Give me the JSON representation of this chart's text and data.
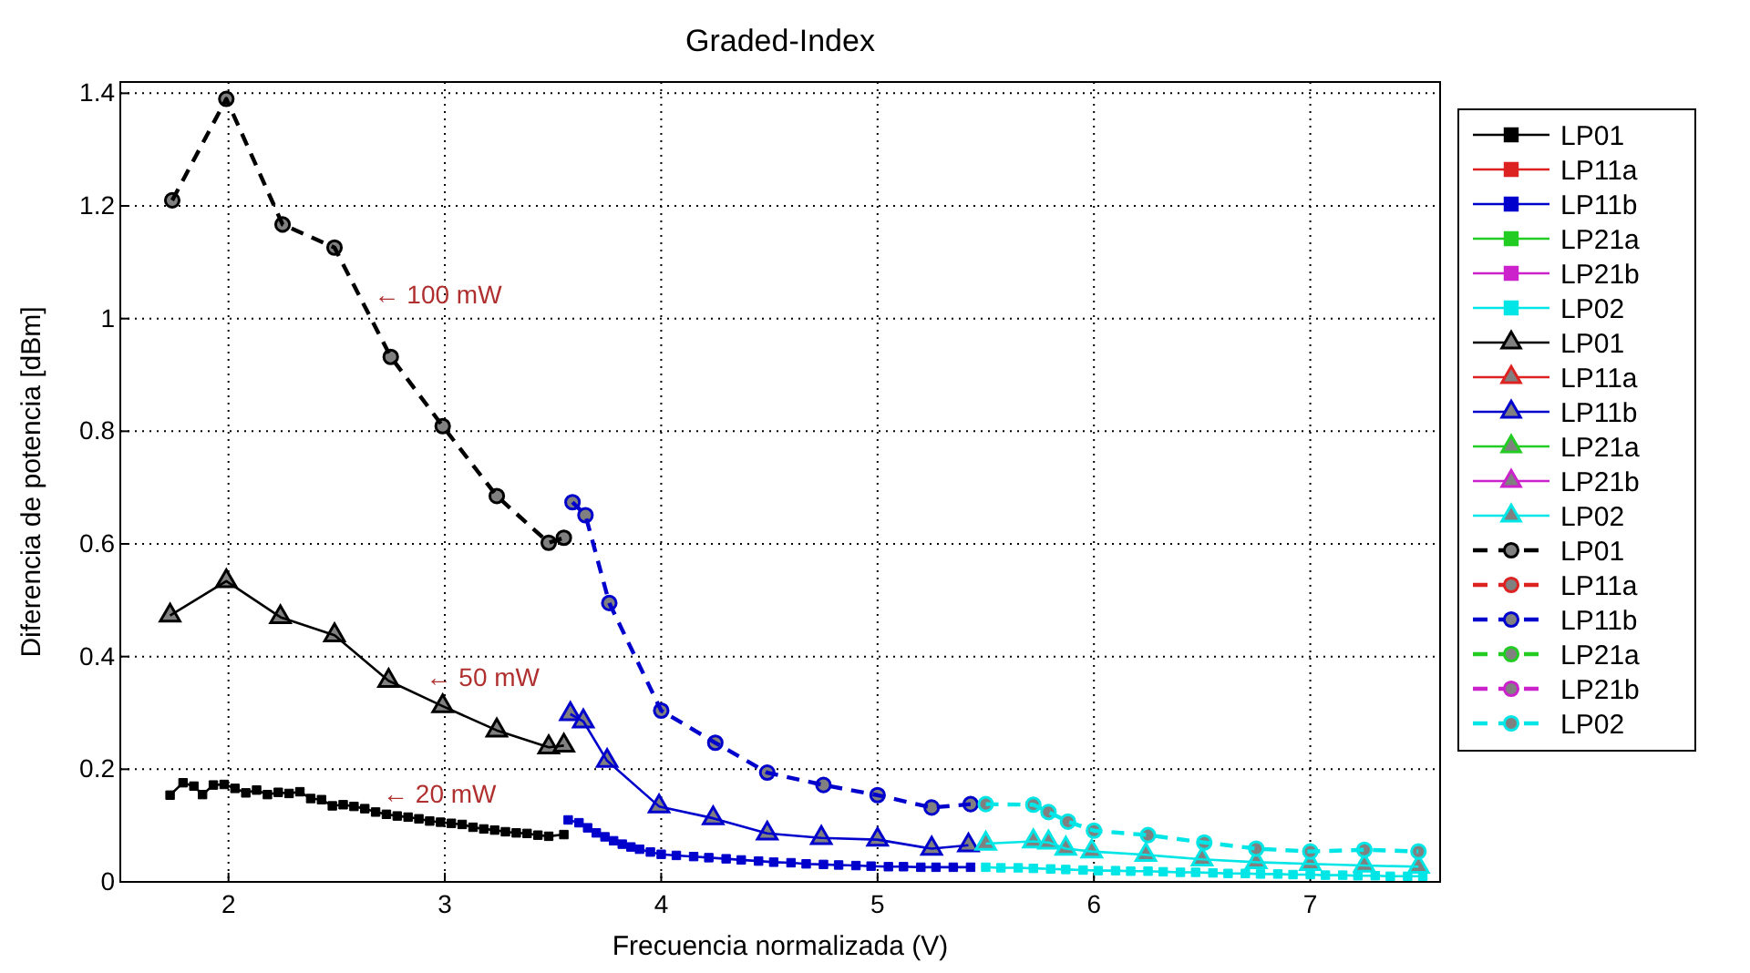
{
  "chart_data": {
    "type": "line",
    "title": "Graded-Index",
    "xlabel": "Frecuencia normalizada (V)",
    "ylabel": "Diferencia de potencia [dBm]",
    "xlim": [
      1.5,
      7.6
    ],
    "ylim": [
      0,
      1.42
    ],
    "xticks": [
      2,
      3,
      4,
      5,
      6,
      7
    ],
    "yticks": [
      0,
      0.2,
      0.4,
      0.6,
      0.8,
      1,
      1.2,
      1.4
    ],
    "grid": true,
    "legend": "right",
    "series": [
      {
        "name": "LP01",
        "color": "#000000",
        "marker": "square",
        "line_style": "solid",
        "x": [
          1.73,
          1.79,
          1.84,
          1.88,
          1.93,
          1.98,
          2.03,
          2.08,
          2.13,
          2.18,
          2.23,
          2.28,
          2.33,
          2.38,
          2.43,
          2.48,
          2.53,
          2.58,
          2.63,
          2.68,
          2.73,
          2.78,
          2.83,
          2.88,
          2.93,
          2.98,
          3.03,
          3.08,
          3.13,
          3.18,
          3.23,
          3.28,
          3.33,
          3.38,
          3.43,
          3.48,
          3.55
        ],
        "values": [
          0.154,
          0.176,
          0.17,
          0.155,
          0.172,
          0.173,
          0.166,
          0.158,
          0.163,
          0.155,
          0.159,
          0.157,
          0.16,
          0.148,
          0.146,
          0.135,
          0.137,
          0.134,
          0.13,
          0.124,
          0.12,
          0.117,
          0.115,
          0.112,
          0.108,
          0.106,
          0.104,
          0.102,
          0.097,
          0.094,
          0.092,
          0.089,
          0.087,
          0.086,
          0.083,
          0.081,
          0.084
        ]
      },
      {
        "name": "LP11a",
        "color": "#dd2222",
        "marker": "square",
        "line_style": "solid",
        "values": [
          null
        ]
      },
      {
        "name": "LP11b",
        "color": "#0000cc",
        "marker": "square",
        "line_style": "solid",
        "x": [
          3.57,
          3.62,
          3.66,
          3.7,
          3.74,
          3.78,
          3.82,
          3.86,
          3.9,
          3.95,
          4.0,
          4.07,
          4.15,
          4.22,
          4.3,
          4.37,
          4.45,
          4.52,
          4.6,
          4.67,
          4.75,
          4.82,
          4.9,
          4.97,
          5.05,
          5.12,
          5.2,
          5.27,
          5.35,
          5.43
        ],
        "values": [
          0.11,
          0.105,
          0.096,
          0.087,
          0.08,
          0.073,
          0.067,
          0.062,
          0.058,
          0.053,
          0.049,
          0.047,
          0.045,
          0.043,
          0.041,
          0.039,
          0.037,
          0.035,
          0.034,
          0.032,
          0.031,
          0.03,
          0.029,
          0.028,
          0.027,
          0.027,
          0.026,
          0.026,
          0.026,
          0.026
        ]
      },
      {
        "name": "LP21a",
        "color": "#22cc22",
        "marker": "square",
        "line_style": "solid",
        "values": [
          null
        ]
      },
      {
        "name": "LP21b",
        "color": "#cc22cc",
        "marker": "square",
        "line_style": "solid",
        "values": [
          null
        ]
      },
      {
        "name": "LP02",
        "color": "#00e5e5",
        "marker": "square",
        "line_style": "solid",
        "x": [
          5.5,
          5.57,
          5.65,
          5.72,
          5.8,
          5.87,
          5.95,
          6.02,
          6.1,
          6.17,
          6.25,
          6.32,
          6.4,
          6.47,
          6.55,
          6.62,
          6.7,
          6.77,
          6.85,
          6.92,
          7.0,
          7.07,
          7.15,
          7.22,
          7.3,
          7.37,
          7.45,
          7.52
        ],
        "values": [
          0.026,
          0.025,
          0.025,
          0.024,
          0.023,
          0.022,
          0.021,
          0.02,
          0.02,
          0.019,
          0.019,
          0.018,
          0.017,
          0.017,
          0.016,
          0.015,
          0.015,
          0.014,
          0.014,
          0.013,
          0.013,
          0.012,
          0.012,
          0.011,
          0.011,
          0.01,
          0.01,
          0.01
        ]
      },
      {
        "name": "LP01",
        "color": "#000000",
        "marker": "triangle",
        "line_style": "solid",
        "x": [
          1.73,
          1.99,
          2.24,
          2.49,
          2.74,
          2.99,
          3.24,
          3.48,
          3.55
        ],
        "values": [
          0.473,
          0.534,
          0.47,
          0.438,
          0.357,
          0.312,
          0.269,
          0.239,
          0.242
        ]
      },
      {
        "name": "LP11a",
        "color": "#dd2222",
        "marker": "triangle",
        "line_style": "solid",
        "values": [
          null
        ]
      },
      {
        "name": "LP11b",
        "color": "#0000cc",
        "marker": "triangle",
        "line_style": "solid",
        "x": [
          3.58,
          3.64,
          3.75,
          3.99,
          4.24,
          4.49,
          4.74,
          5.0,
          5.25,
          5.42
        ],
        "values": [
          0.298,
          0.285,
          0.215,
          0.134,
          0.113,
          0.086,
          0.078,
          0.075,
          0.059,
          0.065
        ]
      },
      {
        "name": "LP21a",
        "color": "#22cc22",
        "marker": "triangle",
        "line_style": "solid",
        "values": [
          null
        ]
      },
      {
        "name": "LP21b",
        "color": "#cc22cc",
        "marker": "triangle",
        "line_style": "solid",
        "values": [
          null
        ]
      },
      {
        "name": "LP02",
        "color": "#00e5e5",
        "marker": "triangle",
        "line_style": "solid",
        "x": [
          5.5,
          5.72,
          5.79,
          5.87,
          5.99,
          6.24,
          6.5,
          6.75,
          7.0,
          7.25,
          7.5
        ],
        "values": [
          0.068,
          0.072,
          0.07,
          0.059,
          0.054,
          0.048,
          0.04,
          0.035,
          0.032,
          0.029,
          0.027
        ]
      },
      {
        "name": "LP01",
        "color": "#000000",
        "marker": "circle",
        "line_style": "dashed",
        "x": [
          1.74,
          1.99,
          2.25,
          2.49,
          2.75,
          2.99,
          3.24,
          3.48,
          3.55
        ],
        "values": [
          1.21,
          1.39,
          1.167,
          1.126,
          0.932,
          0.809,
          0.685,
          0.602,
          0.611
        ]
      },
      {
        "name": "LP11a",
        "color": "#dd2222",
        "marker": "circle",
        "line_style": "dashed",
        "values": [
          null
        ]
      },
      {
        "name": "LP11b",
        "color": "#0000cc",
        "marker": "circle",
        "line_style": "dashed",
        "x": [
          3.59,
          3.65,
          3.76,
          4.0,
          4.25,
          4.49,
          4.75,
          5.0,
          5.25,
          5.43
        ],
        "values": [
          0.674,
          0.651,
          0.495,
          0.304,
          0.247,
          0.194,
          0.172,
          0.154,
          0.132,
          0.138
        ]
      },
      {
        "name": "LP21a",
        "color": "#22cc22",
        "marker": "circle",
        "line_style": "dashed",
        "values": [
          null
        ]
      },
      {
        "name": "LP21b",
        "color": "#cc22cc",
        "marker": "circle",
        "line_style": "dashed",
        "values": [
          null
        ]
      },
      {
        "name": "LP02",
        "color": "#00e5e5",
        "marker": "circle",
        "line_style": "dashed",
        "x": [
          5.5,
          5.72,
          5.79,
          5.88,
          6.0,
          6.25,
          6.51,
          6.75,
          7.0,
          7.25,
          7.5
        ],
        "values": [
          0.138,
          0.137,
          0.124,
          0.107,
          0.091,
          0.083,
          0.07,
          0.059,
          0.054,
          0.057,
          0.054
        ]
      }
    ],
    "annotations": [
      {
        "text": "← 100 mW",
        "x": 2.64,
        "y": 1.01
      },
      {
        "text": "← 50 mW",
        "x": 2.88,
        "y": 0.332
      },
      {
        "text": "← 20 mW",
        "x": 2.68,
        "y": 0.124
      }
    ]
  }
}
